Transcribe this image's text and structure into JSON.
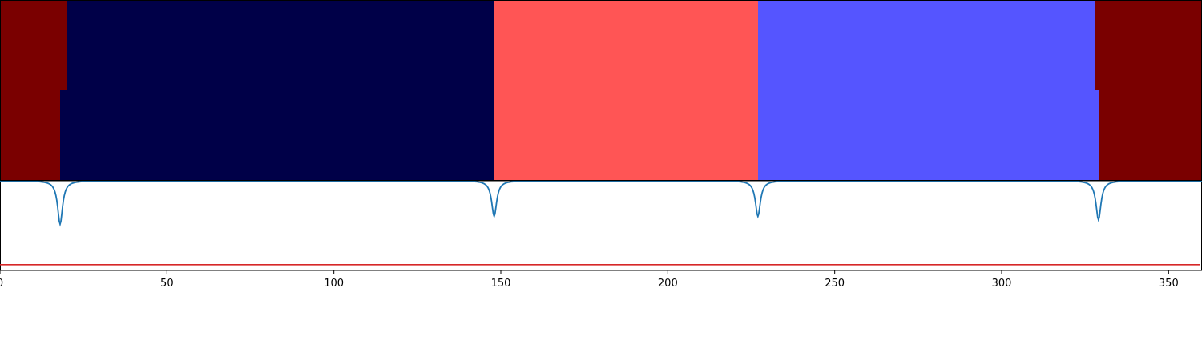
{
  "chart_data": {
    "type": "heatmap",
    "title": "",
    "xlabel": "",
    "ylabel": "",
    "xlim": [
      0,
      360
    ],
    "x_ticks": [
      0,
      50,
      100,
      150,
      200,
      250,
      300,
      350
    ],
    "x_tick_labels": [
      "0",
      "50",
      "100",
      "150",
      "200",
      "250",
      "300",
      "350"
    ],
    "grid": false,
    "legend": "none",
    "rows": [
      {
        "segments": [
          {
            "start": 0,
            "end": 20,
            "color": "#7a0000"
          },
          {
            "start": 20,
            "end": 148,
            "color": "#000048"
          },
          {
            "start": 148,
            "end": 227,
            "color": "#ff5555"
          },
          {
            "start": 227,
            "end": 328,
            "color": "#5555ff"
          },
          {
            "start": 328,
            "end": 360,
            "color": "#7a0000"
          }
        ]
      },
      {
        "segments": [
          {
            "start": 0,
            "end": 18,
            "color": "#7a0000"
          },
          {
            "start": 18,
            "end": 148,
            "color": "#000048"
          },
          {
            "start": 148,
            "end": 227,
            "color": "#ff5555"
          },
          {
            "start": 227,
            "end": 329,
            "color": "#5555ff"
          },
          {
            "start": 329,
            "end": 360,
            "color": "#7a0000"
          }
        ]
      }
    ],
    "signal": {
      "color": "#1f77b4",
      "baseline": 0,
      "ylim": [
        -1.2,
        0.05
      ],
      "dips": [
        {
          "x": 18,
          "depth": 1.0,
          "width": 0.9
        },
        {
          "x": 148,
          "depth": 0.82,
          "width": 0.9
        },
        {
          "x": 227,
          "depth": 0.82,
          "width": 0.9
        },
        {
          "x": 329,
          "depth": 0.9,
          "width": 0.9
        }
      ]
    },
    "threshold": {
      "value": -1.45,
      "color": "#d62728"
    }
  }
}
